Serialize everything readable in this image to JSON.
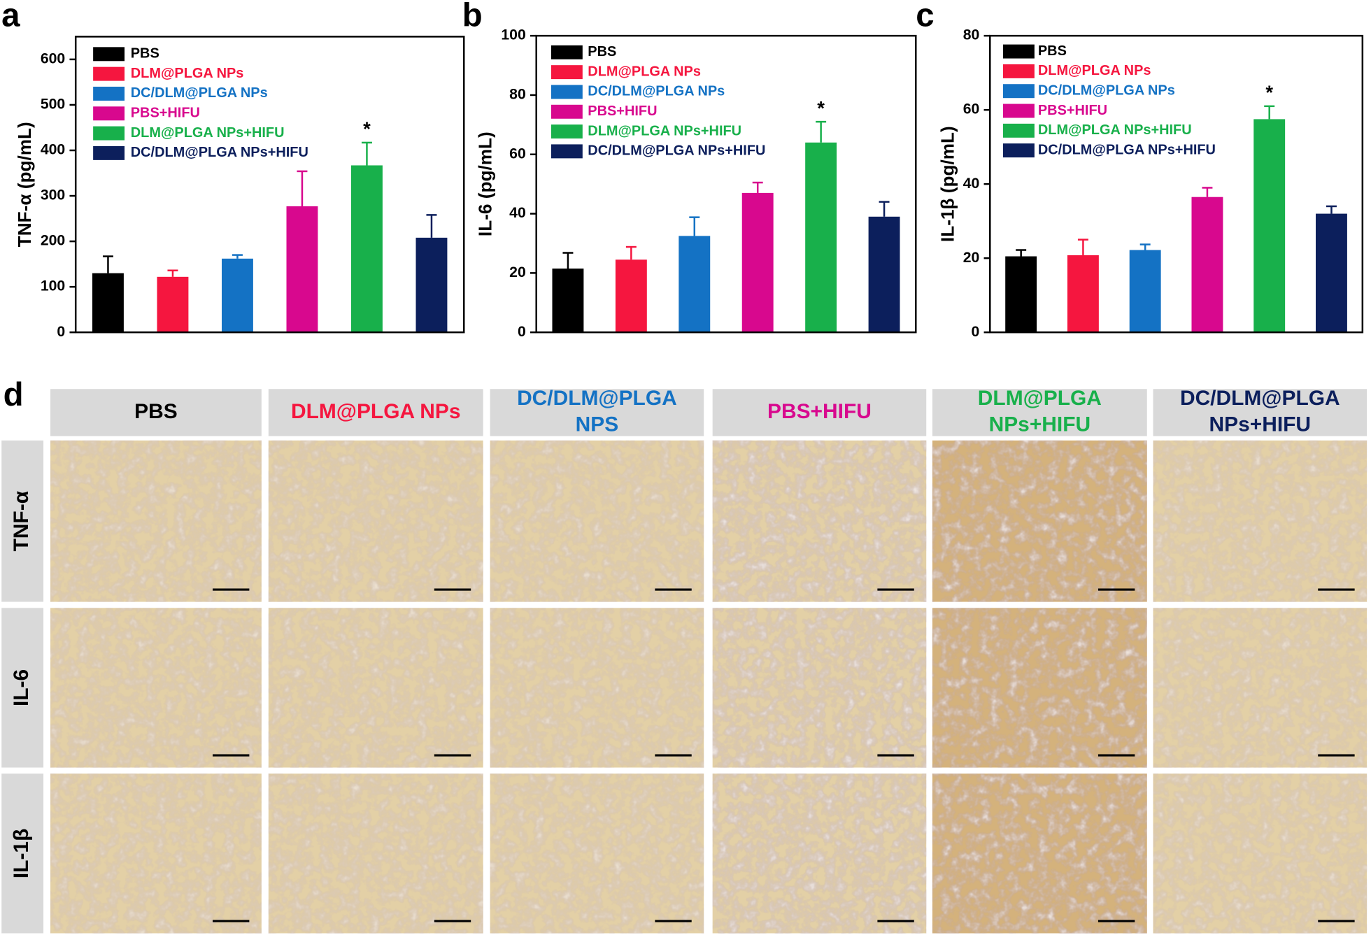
{
  "chart_data": [
    {
      "type": "bar",
      "panel": "a",
      "ylabel": "TNF-α (pg/mL)",
      "categories": [
        "PBS",
        "DLM@PLGA NPs",
        "DC/DLM@PLGA NPs",
        "PBS+HIFU",
        "DLM@PLGA NPs+HIFU",
        "DC/DLM@PLGA NPs+HIFU"
      ],
      "colors": [
        "#000000",
        "#f5163f",
        "#1472c4",
        "#d8088e",
        "#18b04b",
        "#0c1f5c"
      ],
      "values": [
        130,
        122,
        162,
        277,
        367,
        208
      ],
      "errors": [
        37,
        14,
        8,
        77,
        50,
        50
      ],
      "ylim": [
        0,
        650
      ],
      "yticks": [
        0,
        100,
        200,
        300,
        400,
        500,
        600
      ],
      "significance": {
        "text": "*",
        "index": 4
      }
    },
    {
      "type": "bar",
      "panel": "b",
      "ylabel": "IL-6 (pg/mL)",
      "categories": [
        "PBS",
        "DLM@PLGA NPs",
        "DC/DLM@PLGA NPs",
        "PBS+HIFU",
        "DLM@PLGA NPs+HIFU",
        "DC/DLM@PLGA NPs+HIFU"
      ],
      "colors": [
        "#000000",
        "#f5163f",
        "#1472c4",
        "#d8088e",
        "#18b04b",
        "#0c1f5c"
      ],
      "values": [
        21.5,
        24.5,
        32.5,
        47,
        64,
        39
      ],
      "errors": [
        5.3,
        4.3,
        6.3,
        3.5,
        7,
        5
      ],
      "ylim": [
        0,
        100
      ],
      "yticks": [
        0,
        20,
        40,
        60,
        80,
        100
      ],
      "significance": {
        "text": "*",
        "index": 4
      }
    },
    {
      "type": "bar",
      "panel": "c",
      "ylabel": "IL-1β (pg/mL)",
      "categories": [
        "PBS",
        "DLM@PLGA NPs",
        "DC/DLM@PLGA NPs",
        "PBS+HIFU",
        "DLM@PLGA NPs+HIFU",
        "DC/DLM@PLGA NPs+HIFU"
      ],
      "colors": [
        "#000000",
        "#f5163f",
        "#1472c4",
        "#d8088e",
        "#18b04b",
        "#0c1f5c"
      ],
      "values": [
        20.5,
        20.8,
        22.2,
        36.5,
        57.5,
        32
      ],
      "errors": [
        1.7,
        4.2,
        1.5,
        2.5,
        3.5,
        2
      ],
      "ylim": [
        0,
        80
      ],
      "yticks": [
        0,
        20,
        40,
        60,
        80
      ],
      "significance": {
        "text": "*",
        "index": 4
      }
    }
  ],
  "panel_d": {
    "panel": "d",
    "columns": [
      {
        "lines": [
          "PBS"
        ],
        "color": "#000000"
      },
      {
        "lines": [
          "DLM@PLGA NPs"
        ],
        "color": "#f5163f"
      },
      {
        "lines": [
          "DC/DLM@PLGA",
          "NPS"
        ],
        "color": "#1472c4"
      },
      {
        "lines": [
          "PBS+HIFU"
        ],
        "color": "#d8088e"
      },
      {
        "lines": [
          "DLM@PLGA",
          "NPs+HIFU"
        ],
        "color": "#18b04b"
      },
      {
        "lines": [
          "DC/DLM@PLGA",
          "NPs+HIFU"
        ],
        "color": "#0c1f5c"
      }
    ],
    "rows": [
      "TNF-α",
      "IL-6",
      "IL-1β"
    ]
  }
}
